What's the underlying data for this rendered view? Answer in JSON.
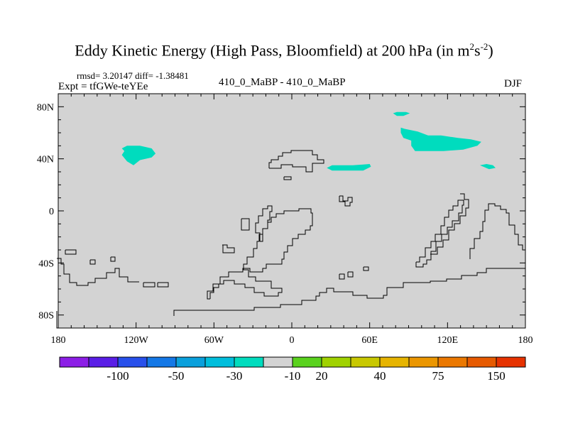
{
  "chart_data": {
    "type": "heatmap",
    "title_main": "Eddy Kinetic Energy (High Pass, Bloomfield) at 200 hPa (in m",
    "title_sup1": "2",
    "title_mid": "s",
    "title_sup2": "-2",
    "title_end": ")",
    "stats": "rmsd= 3.20147 diff= -1.38481",
    "expt": "Expt = tfGWe-teYEe",
    "subtitle": "410_0_MaBP - 410_0_MaBP",
    "season": "DJF",
    "xlim": [
      -180,
      180
    ],
    "ylim": [
      -90,
      90
    ],
    "x_ticks": [
      -180,
      -120,
      -60,
      0,
      60,
      120,
      180
    ],
    "x_tick_labels": [
      "180",
      "120W",
      "60W",
      "0",
      "60E",
      "120E",
      "180"
    ],
    "y_ticks": [
      80,
      40,
      0,
      -40,
      -80
    ],
    "y_tick_labels": [
      "80N",
      "40N",
      "0",
      "40S",
      "80S"
    ],
    "background_color": "#d3d3d3",
    "regions": [
      {
        "name": "north-pacific-patch",
        "value": -15,
        "color": "#00dcbe",
        "points": [
          [
            -131,
            48
          ],
          [
            -127,
            50
          ],
          [
            -117,
            50
          ],
          [
            -108,
            48
          ],
          [
            -105,
            44
          ],
          [
            -108,
            41
          ],
          [
            -117,
            39
          ],
          [
            -122,
            35
          ],
          [
            -127,
            38
          ],
          [
            -131,
            43
          ],
          [
            -129,
            46
          ]
        ]
      },
      {
        "name": "asia-patch",
        "value": -15,
        "color": "#00dcbe",
        "points": [
          [
            84,
            64
          ],
          [
            87,
            63
          ],
          [
            97,
            61
          ],
          [
            105,
            58
          ],
          [
            115,
            58
          ],
          [
            128,
            56
          ],
          [
            138,
            55
          ],
          [
            146,
            53
          ],
          [
            143,
            50
          ],
          [
            132,
            47
          ],
          [
            117,
            46
          ],
          [
            105,
            46
          ],
          [
            95,
            46
          ],
          [
            92,
            50
          ],
          [
            92,
            54
          ],
          [
            86,
            56
          ],
          [
            84,
            60
          ]
        ]
      },
      {
        "name": "arctic-patch",
        "value": -15,
        "color": "#00dcbe",
        "points": [
          [
            78,
            75
          ],
          [
            81,
            76
          ],
          [
            88,
            76
          ],
          [
            91,
            75
          ],
          [
            86,
            73
          ],
          [
            81,
            73
          ]
        ]
      },
      {
        "name": "middle-east-patch",
        "value": -15,
        "color": "#00dcbe",
        "points": [
          [
            27,
            33
          ],
          [
            31,
            35
          ],
          [
            47,
            35
          ],
          [
            60,
            36
          ],
          [
            61,
            34
          ],
          [
            55,
            31
          ],
          [
            42,
            31
          ],
          [
            31,
            31
          ]
        ]
      },
      {
        "name": "japan-patch",
        "value": -15,
        "color": "#00dcbe",
        "points": [
          [
            145,
            35
          ],
          [
            150,
            36
          ],
          [
            155,
            35
          ],
          [
            157,
            33
          ],
          [
            152,
            32
          ]
        ]
      }
    ],
    "colorbar": {
      "colors": [
        "#8c1ee6",
        "#5a1ee6",
        "#2850eb",
        "#1478e6",
        "#0aa0dc",
        "#00bedc",
        "#00dcbe",
        "#d3d3d3",
        "#5ad21e",
        "#a0d200",
        "#c8c800",
        "#e6b400",
        "#eb9600",
        "#eb7800",
        "#e65a00",
        "#e63200"
      ],
      "labels": [
        {
          "after_index": 1,
          "text": "-100"
        },
        {
          "after_index": 3,
          "text": "-50"
        },
        {
          "after_index": 5,
          "text": "-30"
        },
        {
          "after_index": 7,
          "text": "-10"
        },
        {
          "after_index": 8,
          "text": "20"
        },
        {
          "after_index": 10,
          "text": "40"
        },
        {
          "after_index": 12,
          "text": "75"
        },
        {
          "after_index": 14,
          "text": "150"
        }
      ]
    }
  }
}
